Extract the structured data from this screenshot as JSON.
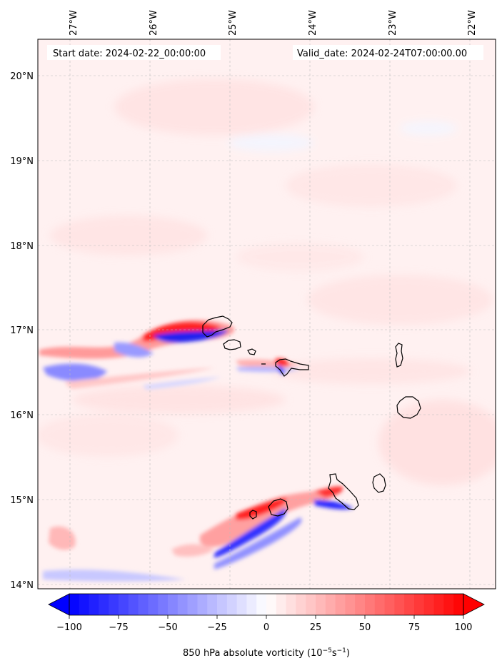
{
  "header": {
    "start_label": "Start date: 2024-02-22_00:00:00",
    "valid_label": "Valid_date: 2024-02-24T07:00:00.00"
  },
  "map": {
    "lon_ticks": [
      "27°W",
      "26°W",
      "25°W",
      "24°W",
      "23°W",
      "22°W"
    ],
    "lat_ticks": [
      "20°N",
      "19°N",
      "18°N",
      "17°N",
      "16°N",
      "15°N",
      "14°N"
    ],
    "gridlines": true,
    "coastline_color": "#000000",
    "islands": [
      "Santo Antão",
      "São Vicente",
      "Santa Luzia",
      "São Nicolau",
      "Sal",
      "Boa Vista",
      "Brava",
      "Fogo",
      "Santiago",
      "Maio"
    ]
  },
  "colorbar": {
    "min": -100,
    "max": 100,
    "tick_labels": [
      "−100",
      "−75",
      "−50",
      "−25",
      "0",
      "25",
      "50",
      "75",
      "100"
    ],
    "label_main": "850 hPa absolute vorticity (10",
    "label_exp1": "−5",
    "label_mid": "s",
    "label_exp2": "−1",
    "label_end": ")",
    "low_color": "#0000ff",
    "mid_color": "#ffffff",
    "high_color": "#ff0000",
    "extend": "both"
  }
}
